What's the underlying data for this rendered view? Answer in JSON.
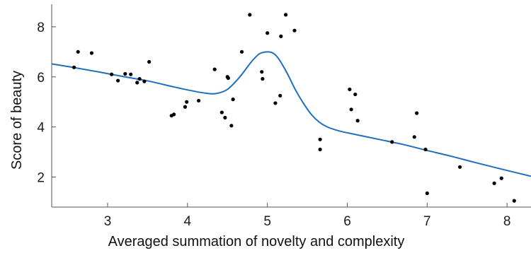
{
  "chart_data": {
    "type": "scatter",
    "xlabel": "Averaged summation of novelty and complexity",
    "ylabel": "Score of beauty",
    "xlim": [
      2.3,
      8.3
    ],
    "ylim": [
      0.8,
      8.9
    ],
    "xticks": [
      3,
      4,
      5,
      6,
      7,
      8
    ],
    "yticks": [
      2,
      4,
      6,
      8
    ],
    "grid": false,
    "legend": "none",
    "colors": {
      "points": "#000000",
      "curve": "#1f6fbf",
      "axes": "#555555"
    },
    "series": [
      {
        "type": "scatter",
        "x": [
          2.58,
          2.63,
          2.8,
          3.05,
          3.13,
          3.22,
          3.29,
          3.37,
          3.4,
          3.46,
          3.52,
          3.8,
          3.83,
          3.97,
          3.99,
          4.14,
          4.34,
          4.43,
          4.47,
          4.5,
          4.51,
          4.55,
          4.57,
          4.68,
          4.78,
          4.93,
          4.94,
          5.0,
          5.1,
          5.16,
          5.17,
          5.23,
          5.34,
          5.66,
          5.66,
          6.03,
          6.05,
          6.1,
          6.13,
          6.56,
          6.84,
          6.87,
          6.98,
          7.0,
          7.41,
          7.84,
          7.93,
          8.09
        ],
        "y": [
          6.38,
          7.0,
          6.95,
          6.1,
          5.85,
          6.12,
          6.1,
          5.77,
          5.92,
          5.82,
          6.6,
          4.45,
          4.5,
          4.8,
          5.0,
          5.05,
          6.3,
          4.58,
          4.37,
          6.0,
          5.95,
          4.05,
          5.1,
          7.0,
          8.48,
          6.2,
          5.92,
          7.75,
          4.95,
          5.25,
          7.62,
          8.48,
          7.85,
          3.5,
          3.1,
          5.5,
          4.7,
          5.3,
          4.25,
          3.4,
          3.6,
          4.55,
          3.1,
          1.35,
          2.4,
          1.75,
          1.95,
          1.05
        ]
      },
      {
        "type": "line",
        "x": [
          2.3,
          2.6,
          2.9,
          3.2,
          3.5,
          3.8,
          4.0,
          4.2,
          4.35,
          4.5,
          4.65,
          4.8,
          4.9,
          5.0,
          5.08,
          5.15,
          5.25,
          5.35,
          5.45,
          5.55,
          5.65,
          5.75,
          5.9,
          6.1,
          6.4,
          6.7,
          7.0,
          7.3,
          7.6,
          7.9,
          8.3
        ],
        "y": [
          6.52,
          6.36,
          6.19,
          6.01,
          5.84,
          5.62,
          5.48,
          5.36,
          5.33,
          5.5,
          5.98,
          6.6,
          6.92,
          7.0,
          6.93,
          6.68,
          6.13,
          5.49,
          4.95,
          4.5,
          4.19,
          4.0,
          3.84,
          3.7,
          3.5,
          3.3,
          3.06,
          2.83,
          2.58,
          2.34,
          2.03
        ]
      }
    ]
  }
}
